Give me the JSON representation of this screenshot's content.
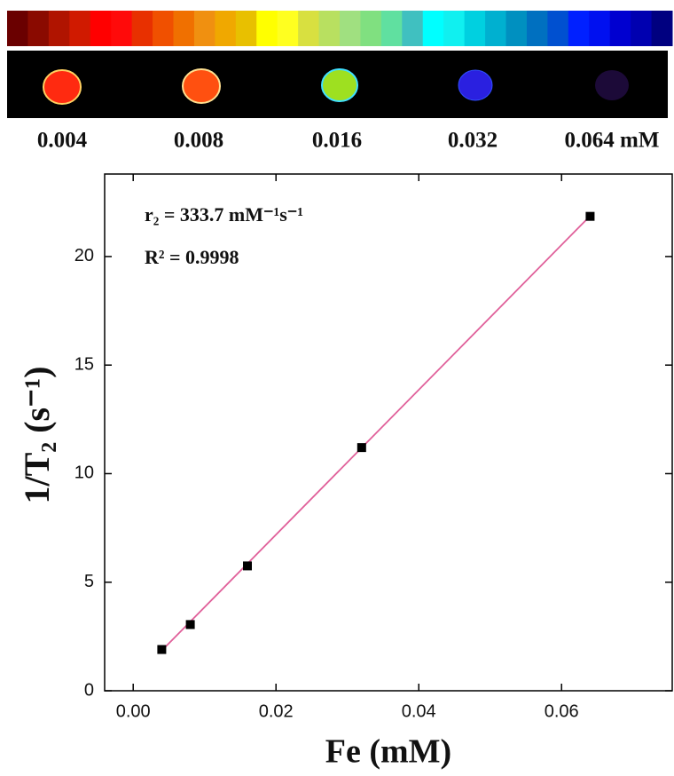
{
  "concentration_labels": [
    "0.004",
    "0.008",
    "0.016",
    "0.032",
    "0.064 mM"
  ],
  "chart_data": {
    "type": "scatter",
    "x_label": "Fe (mM)",
    "y_label": "1/T₂ (s⁻¹)",
    "annotations": [
      "r₂ = 333.7 mM⁻¹s⁻¹",
      "R² = 0.9998"
    ],
    "x": [
      0.004,
      0.008,
      0.016,
      0.032,
      0.064
    ],
    "values": [
      1.9,
      3.05,
      5.75,
      11.2,
      21.85
    ],
    "color": "#000000",
    "fit": {
      "x": [
        0.004,
        0.064
      ],
      "values": [
        1.85,
        21.87
      ],
      "color": "#e0609a"
    },
    "xlim": [
      -0.004,
      0.0755
    ],
    "ylim": [
      0,
      23.8
    ],
    "xticks": [
      {
        "value": 0,
        "label": "0.00"
      },
      0.02,
      0.04,
      0.06
    ],
    "yticks": [
      0,
      5,
      10,
      15,
      20
    ]
  }
}
